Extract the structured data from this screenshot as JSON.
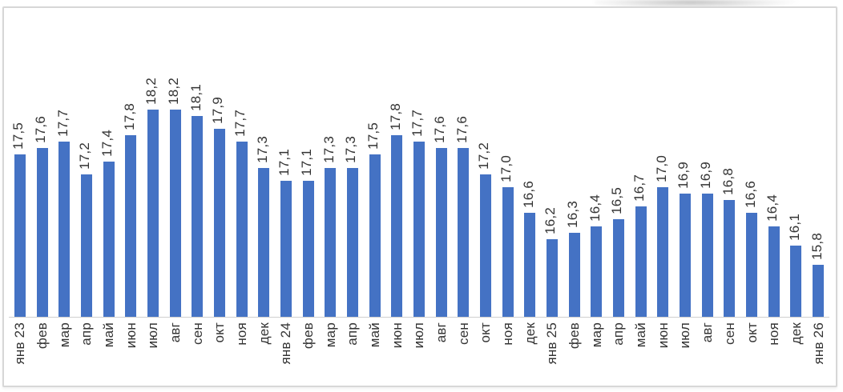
{
  "chart_data": {
    "type": "bar",
    "title": "",
    "xlabel": "",
    "ylabel": "",
    "categories": [
      "янв 23",
      "фев",
      "мар",
      "апр",
      "май",
      "июн",
      "июл",
      "авг",
      "сен",
      "окт",
      "ноя",
      "дек",
      "янв 24",
      "фев",
      "мар",
      "апр",
      "май",
      "июн",
      "июл",
      "авг",
      "сен",
      "окт",
      "ноя",
      "дек",
      "янв 25",
      "фев",
      "мар",
      "апр",
      "май",
      "июн",
      "июл",
      "авг",
      "сен",
      "окт",
      "ноя",
      "дек",
      "янв 26"
    ],
    "values": [
      17.5,
      17.6,
      17.7,
      17.2,
      17.4,
      17.8,
      18.2,
      18.2,
      18.1,
      17.9,
      17.7,
      17.3,
      17.1,
      17.1,
      17.3,
      17.3,
      17.5,
      17.8,
      17.7,
      17.6,
      17.6,
      17.2,
      17.0,
      16.6,
      16.2,
      16.3,
      16.4,
      16.5,
      16.7,
      17.0,
      16.9,
      16.9,
      16.8,
      16.6,
      16.4,
      16.1,
      15.8
    ],
    "value_labels": [
      "17,5",
      "17,6",
      "17,7",
      "17,2",
      "17,4",
      "17,8",
      "18,2",
      "18,2",
      "18,1",
      "17,9",
      "17,7",
      "17,3",
      "17,1",
      "17,1",
      "17,3",
      "17,3",
      "17,5",
      "17,8",
      "17,7",
      "17,6",
      "17,6",
      "17,2",
      "17,0",
      "16,6",
      "16,2",
      "16,3",
      "16,4",
      "16,5",
      "16,7",
      "17,0",
      "16,9",
      "16,9",
      "16,8",
      "16,6",
      "16,4",
      "16,1",
      "15,8"
    ],
    "ylim": [
      15,
      18.5
    ],
    "grid": false,
    "legend": "none",
    "label_rotation_deg": 90,
    "bar_color": "#4472C4",
    "axis_line_color": "#CFCFCF",
    "label_color": "#333333",
    "frame_border_color": "#D7D7D7"
  }
}
